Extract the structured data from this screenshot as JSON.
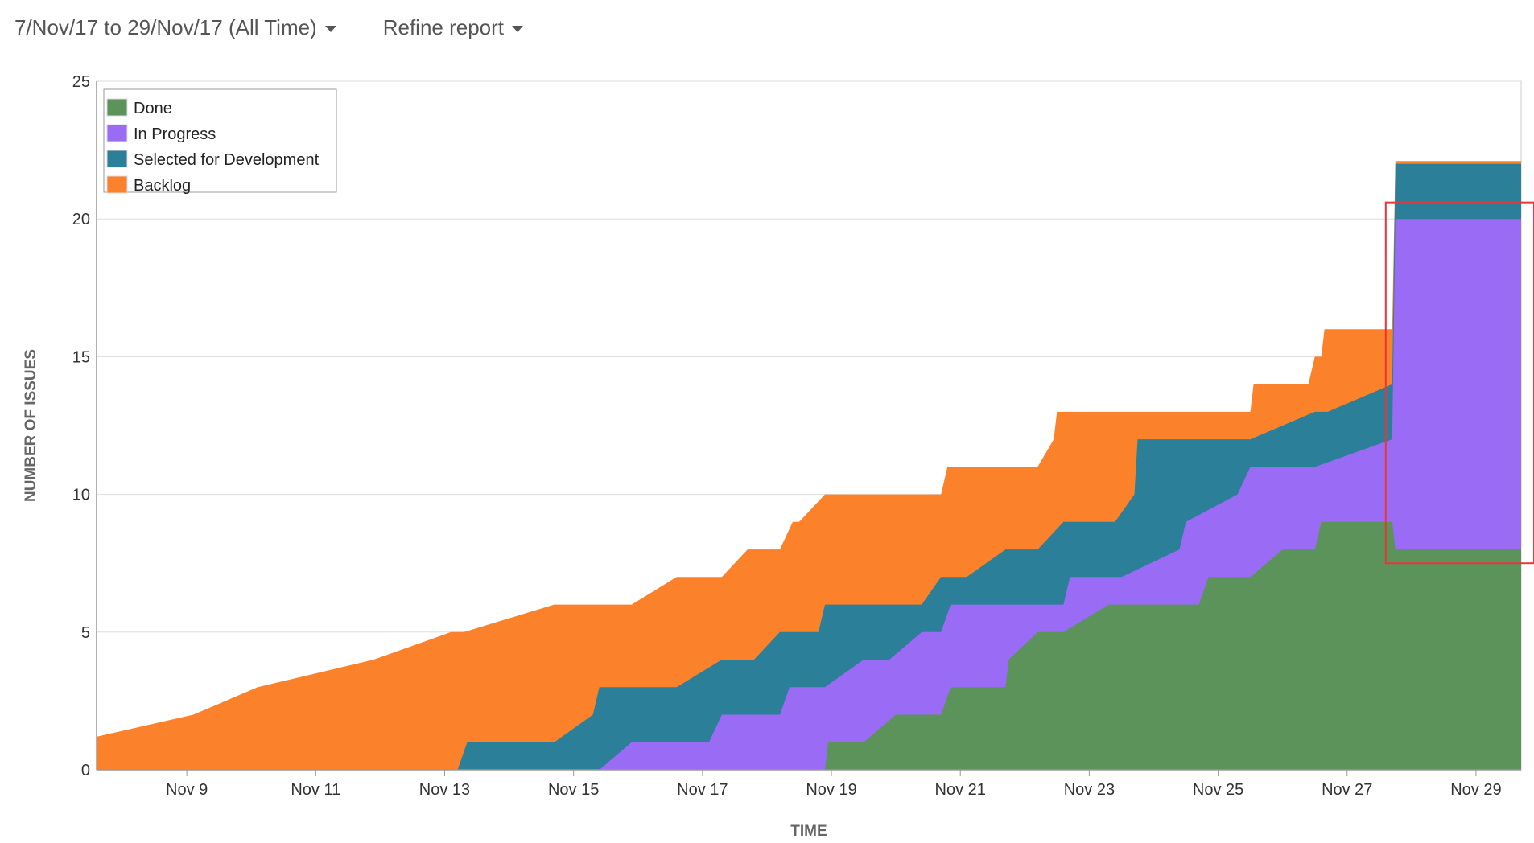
{
  "toolbar": {
    "date_range_label": "7/Nov/17 to 29/Nov/17 (All Time)",
    "refine_label": "Refine report"
  },
  "colors": {
    "done": "#5b935b",
    "in_progress": "#9a6cf5",
    "selected": "#2b7f98",
    "backlog": "#fc812b",
    "highlight": "#e5373a",
    "grid": "#dddddd"
  },
  "chart_data": {
    "type": "area",
    "stacked": true,
    "xlabel": "TIME",
    "ylabel": "NUMBER OF ISSUES",
    "xlim": [
      7.6,
      29.7
    ],
    "ylim": [
      0,
      25
    ],
    "y_ticks": [
      0,
      5,
      10,
      15,
      20,
      25
    ],
    "x_ticks": [
      {
        "x": 9,
        "label": "Nov 9"
      },
      {
        "x": 11,
        "label": "Nov 11"
      },
      {
        "x": 13,
        "label": "Nov 13"
      },
      {
        "x": 15,
        "label": "Nov 15"
      },
      {
        "x": 17,
        "label": "Nov 17"
      },
      {
        "x": 19,
        "label": "Nov 19"
      },
      {
        "x": 21,
        "label": "Nov 21"
      },
      {
        "x": 23,
        "label": "Nov 23"
      },
      {
        "x": 25,
        "label": "Nov 25"
      },
      {
        "x": 27,
        "label": "Nov 27"
      },
      {
        "x": 29,
        "label": "Nov 29"
      }
    ],
    "legend_position": "top-left",
    "grid": "horizontal",
    "series": [
      {
        "name": "Done",
        "color_key": "done",
        "points": [
          [
            7.6,
            0
          ],
          [
            18.9,
            0
          ],
          [
            18.95,
            1
          ],
          [
            19.5,
            1
          ],
          [
            20.0,
            2
          ],
          [
            20.7,
            2
          ],
          [
            20.85,
            3
          ],
          [
            21.7,
            3
          ],
          [
            21.75,
            4
          ],
          [
            22.2,
            5
          ],
          [
            22.6,
            5
          ],
          [
            23.3,
            6
          ],
          [
            24.7,
            6
          ],
          [
            24.85,
            7
          ],
          [
            25.5,
            7
          ],
          [
            26.0,
            8
          ],
          [
            26.5,
            8
          ],
          [
            26.6,
            9
          ],
          [
            27.7,
            9
          ],
          [
            27.75,
            8
          ],
          [
            29.7,
            8
          ]
        ]
      },
      {
        "name": "In Progress",
        "color_key": "in_progress",
        "points": [
          [
            7.6,
            0
          ],
          [
            15.4,
            0
          ],
          [
            15.9,
            1
          ],
          [
            17.1,
            1
          ],
          [
            17.3,
            2
          ],
          [
            18.2,
            2
          ],
          [
            18.35,
            3
          ],
          [
            18.9,
            3
          ],
          [
            19.5,
            4
          ],
          [
            19.9,
            4
          ],
          [
            20.4,
            5
          ],
          [
            20.7,
            5
          ],
          [
            20.85,
            6
          ],
          [
            22.6,
            6
          ],
          [
            22.7,
            7
          ],
          [
            23.5,
            7
          ],
          [
            24.4,
            8
          ],
          [
            24.5,
            9
          ],
          [
            25.3,
            10
          ],
          [
            25.5,
            11
          ],
          [
            26.5,
            11
          ],
          [
            27.7,
            12
          ],
          [
            27.75,
            20
          ],
          [
            29.7,
            20
          ]
        ]
      },
      {
        "name": "Selected for Development",
        "color_key": "selected",
        "points": [
          [
            7.6,
            0
          ],
          [
            13.2,
            0
          ],
          [
            13.35,
            1
          ],
          [
            14.7,
            1
          ],
          [
            15.3,
            2
          ],
          [
            15.4,
            3
          ],
          [
            16.6,
            3
          ],
          [
            17.3,
            4
          ],
          [
            17.8,
            4
          ],
          [
            18.2,
            5
          ],
          [
            18.8,
            5
          ],
          [
            18.9,
            6
          ],
          [
            20.4,
            6
          ],
          [
            20.7,
            7
          ],
          [
            21.1,
            7
          ],
          [
            21.7,
            8
          ],
          [
            22.2,
            8
          ],
          [
            22.6,
            9
          ],
          [
            23.4,
            9
          ],
          [
            23.7,
            10
          ],
          [
            23.75,
            12
          ],
          [
            25.5,
            12
          ],
          [
            26.5,
            13
          ],
          [
            26.7,
            13
          ],
          [
            27.7,
            14
          ],
          [
            27.75,
            22
          ],
          [
            29.7,
            22
          ]
        ]
      },
      {
        "name": "Backlog",
        "color_key": "backlog",
        "points": [
          [
            7.6,
            1.2
          ],
          [
            9.1,
            2
          ],
          [
            10.1,
            3
          ],
          [
            11.9,
            4
          ],
          [
            13.1,
            5
          ],
          [
            13.3,
            5
          ],
          [
            14.7,
            6
          ],
          [
            15.9,
            6
          ],
          [
            16.6,
            7
          ],
          [
            17.3,
            7
          ],
          [
            17.7,
            8
          ],
          [
            18.2,
            8
          ],
          [
            18.4,
            9
          ],
          [
            18.5,
            9
          ],
          [
            18.9,
            10
          ],
          [
            20.7,
            10
          ],
          [
            20.8,
            11
          ],
          [
            22.2,
            11
          ],
          [
            22.45,
            12
          ],
          [
            22.5,
            13
          ],
          [
            25.5,
            13
          ],
          [
            25.55,
            14
          ],
          [
            26.4,
            14
          ],
          [
            26.5,
            15
          ],
          [
            26.6,
            15
          ],
          [
            26.65,
            16
          ],
          [
            27.7,
            16
          ],
          [
            27.75,
            22.1
          ],
          [
            29.7,
            22.1
          ]
        ]
      }
    ],
    "highlight_box": {
      "x0": 27.6,
      "x1": 29.9,
      "y0": 7.5,
      "y1": 20.6
    }
  }
}
